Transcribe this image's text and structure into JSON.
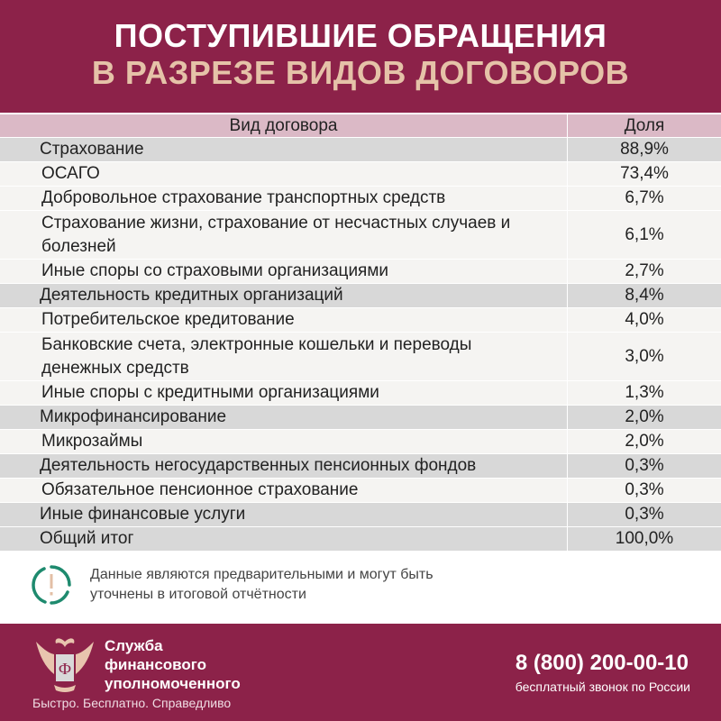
{
  "header": {
    "title_line1": "ПОСТУПИВШИЕ ОБРАЩЕНИЯ",
    "title_line2": "В РАЗРЕЗЕ ВИДОВ ДОГОВОРОВ"
  },
  "colors": {
    "brand": "#8c2249",
    "accent": "#e5c2a8",
    "table_header": "#dbb9c6",
    "category_row": "#d8d8d8",
    "sub_row": "#f5f4f2",
    "icon": "#1e8a6e"
  },
  "table": {
    "columns": [
      "Вид договора",
      "Доля"
    ],
    "rows": [
      {
        "type": "category",
        "label": "Страхование",
        "share": "88,9%"
      },
      {
        "type": "sub",
        "label": "ОСАГО",
        "share": "73,4%"
      },
      {
        "type": "sub",
        "label": "Добровольное страхование транспортных средств",
        "share": "6,7%"
      },
      {
        "type": "sub",
        "label": "Страхование жизни, страхование от несчастных случаев и болезней",
        "share": "6,1%"
      },
      {
        "type": "sub",
        "label": "Иные споры со страховыми организациями",
        "share": "2,7%"
      },
      {
        "type": "category",
        "label": "Деятельность кредитных организаций",
        "share": "8,4%"
      },
      {
        "type": "sub",
        "label": "Потребительское кредитование",
        "share": "4,0%"
      },
      {
        "type": "sub",
        "label": "Банковские счета, электронные кошельки и переводы денежных средств",
        "share": "3,0%"
      },
      {
        "type": "sub",
        "label": "Иные споры с кредитными организациями",
        "share": "1,3%"
      },
      {
        "type": "category",
        "label": "Микрофинансирование",
        "share": "2,0%"
      },
      {
        "type": "sub",
        "label": "Микрозаймы",
        "share": "2,0%"
      },
      {
        "type": "category",
        "label": "Деятельность негосударственных пенсионных фондов",
        "share": "0,3%"
      },
      {
        "type": "sub",
        "label": "Обязательное пенсионное страхование",
        "share": "0,3%"
      },
      {
        "type": "category",
        "label": "Иные финансовые услуги",
        "share": "0,3%"
      },
      {
        "type": "category",
        "label": "Общий итог",
        "share": "100,0%"
      }
    ]
  },
  "note": {
    "icon": "exclamation-circle-icon",
    "text": "Данные являются предварительными и могут быть уточнены в итоговой отчётности"
  },
  "footer": {
    "org_line1": "Служба",
    "org_line2": "финансового",
    "org_line3": "уполномоченного",
    "slogan": "Быстро. Бесплатно. Справедливо",
    "phone": "8 (800) 200-00-10",
    "phone_note": "бесплатный звонок по России",
    "logo_letter": "Ф"
  }
}
